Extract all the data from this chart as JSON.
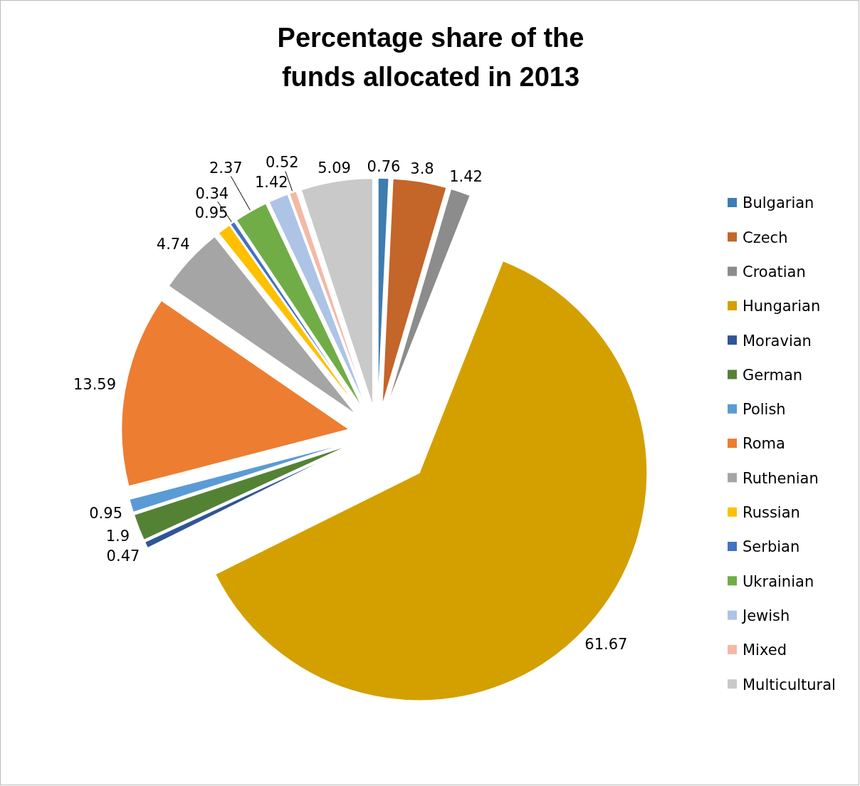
{
  "chart_data": {
    "type": "pie",
    "title": "Percentage share of  the funds allocated in 2013",
    "categories": [
      "Bulgarian",
      "Czech",
      "Croatian",
      "Hungarian",
      "Moravian",
      "German",
      "Polish",
      "Roma",
      "Ruthenian",
      "Russian",
      "Serbian",
      "Ukrainian",
      "Jewish",
      "Mixed",
      "Multicultural"
    ],
    "values": [
      0.76,
      3.8,
      1.42,
      61.67,
      0.47,
      1.9,
      0.95,
      13.59,
      4.74,
      0.95,
      0.34,
      2.37,
      1.42,
      0.52,
      5.09
    ],
    "colors": [
      "#3e7cb1",
      "#c4652a",
      "#8c8c8c",
      "#d4a000",
      "#2f5597",
      "#548235",
      "#5b9bd5",
      "#ed7d31",
      "#a5a5a5",
      "#ffc000",
      "#4472c4",
      "#70ad47",
      "#adc4e6",
      "#f4b9a4",
      "#c9c9c9"
    ],
    "data_labels": true,
    "legend": "right"
  }
}
